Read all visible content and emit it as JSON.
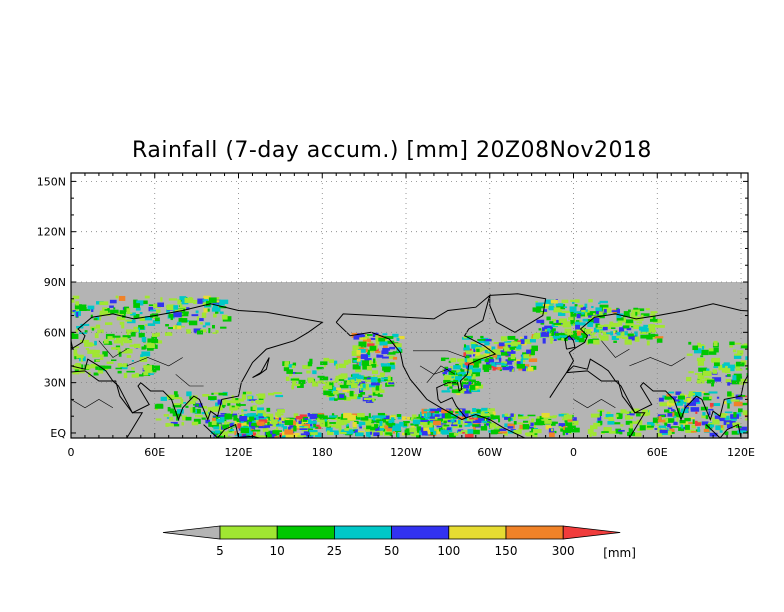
{
  "title": "Rainfall (7-day accum.) [mm] 20Z08Nov2018",
  "map": {
    "lat_labels": [
      "150N",
      "120N",
      "90N",
      "60N",
      "30N",
      "EQ"
    ],
    "lat_values": [
      150,
      120,
      90,
      60,
      30,
      0
    ],
    "lon_labels": [
      "0",
      "60E",
      "120E",
      "180",
      "120W",
      "60W",
      "0",
      "60E",
      "120E"
    ],
    "lon_values": [
      0,
      60,
      120,
      180,
      240,
      300,
      360,
      420,
      480
    ],
    "lat_range": [
      -3,
      155
    ],
    "lon_range": [
      0,
      485
    ],
    "data_lat_top": 90,
    "background_color": "#b4b4b4",
    "coastline_color": "#000000",
    "grid": "dotted"
  },
  "colorbar": {
    "labels": [
      "5",
      "10",
      "25",
      "50",
      "100",
      "150",
      "300"
    ],
    "unit": "[mm]",
    "colors": [
      "#b4b4b4",
      "#a0e632",
      "#00c800",
      "#00c8c8",
      "#3232f0",
      "#e6dc32",
      "#f08228",
      "#f03c3c"
    ]
  }
}
